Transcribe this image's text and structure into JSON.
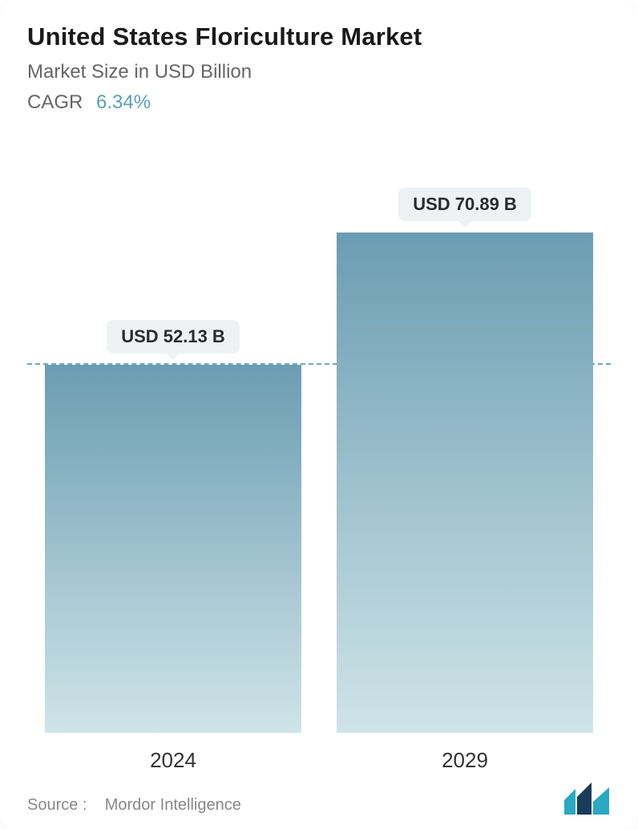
{
  "header": {
    "title": "United States Floriculture Market",
    "subtitle": "Market Size in USD Billion",
    "cagr_label": "CAGR",
    "cagr_value": "6.34%",
    "title_color": "#1a1a1a",
    "subtitle_color": "#666666",
    "cagr_value_color": "#5a9fb8",
    "title_fontsize": 31,
    "subtitle_fontsize": 24
  },
  "chart": {
    "type": "bar",
    "categories": [
      "2024",
      "2029"
    ],
    "values": [
      52.13,
      70.89
    ],
    "value_labels": [
      "USD 52.13 B",
      "USD 70.89 B"
    ],
    "ylim": [
      0,
      80
    ],
    "reference_line_value": 52.13,
    "reference_line_color": "#6fa8bf",
    "reference_line_dash": "6,6",
    "bar_gradient_top": "#6b9db2",
    "bar_gradient_bottom": "#cfe4e8",
    "bar_width_pct": 44,
    "pill_bg": "#eef2f3",
    "pill_text_color": "#2b2b2b",
    "pill_fontsize": 22,
    "xlabel_fontsize": 26,
    "xlabel_color": "#333333",
    "background_color": "#ffffff"
  },
  "footer": {
    "source_label": "Source :",
    "source_value": "Mordor Intelligence",
    "text_color": "#888888",
    "logo_colors": {
      "bar1": "#2aa8c4",
      "bar2": "#1b3b5b",
      "bar3": "#2aa8c4"
    }
  }
}
